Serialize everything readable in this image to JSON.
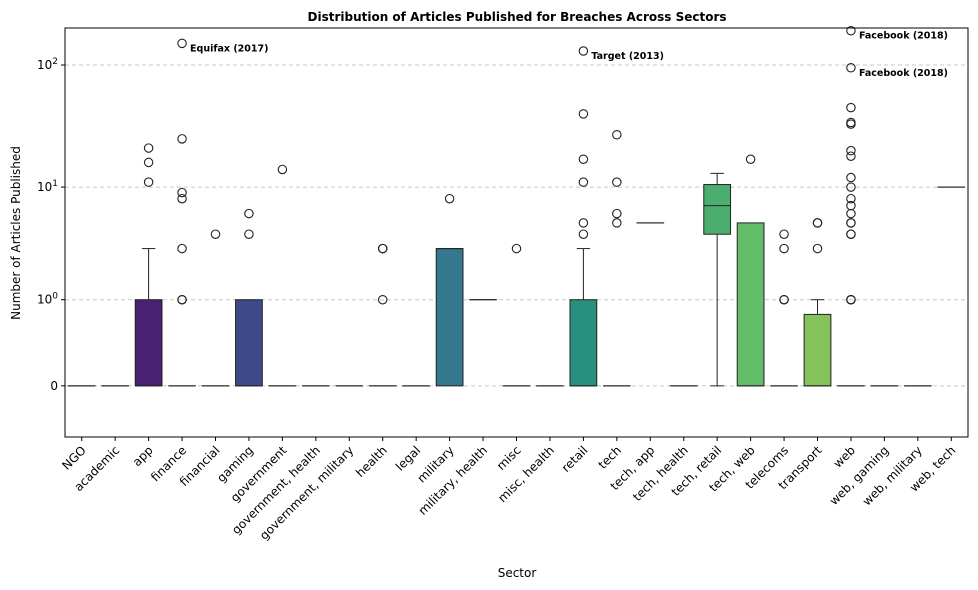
{
  "chart_data": {
    "type": "box",
    "title": "Distribution of Articles Published for Breaches Across Sectors",
    "xlabel": "Sector",
    "ylabel": "Number of Articles Published",
    "yscale": "symlog",
    "ylim": [
      -0.4,
      200
    ],
    "yticks": [
      {
        "value": 0,
        "label": "0"
      },
      {
        "value": 1,
        "label": "10^0"
      },
      {
        "value": 10,
        "label": "10^1"
      },
      {
        "value": 100,
        "label": "10^2"
      }
    ],
    "grid": "y, dashed",
    "categories": [
      "NGO",
      "academic",
      "app",
      "finance",
      "financial",
      "gaming",
      "government",
      "government, health",
      "government, military",
      "health",
      "legal",
      "military",
      "military, health",
      "misc",
      "misc, health",
      "retail",
      "tech",
      "tech, app",
      "tech, health",
      "tech, retail",
      "tech, web",
      "telecoms",
      "transport",
      "web",
      "web, gaming",
      "web, military",
      "web, tech"
    ],
    "boxes": [
      {
        "q1": 0,
        "median": 0,
        "q3": 0,
        "whisker_low": 0,
        "whisker_high": 0,
        "outliers": [],
        "color": "#440154"
      },
      {
        "q1": 0,
        "median": 0,
        "q3": 0,
        "whisker_low": 0,
        "whisker_high": 0,
        "outliers": [],
        "color": "#471365"
      },
      {
        "q1": 0,
        "median": 0,
        "q3": 1,
        "whisker_low": 0,
        "whisker_high": 3,
        "outliers": [
          11,
          16,
          21
        ],
        "color": "#482173"
      },
      {
        "q1": 0,
        "median": 0,
        "q3": 0,
        "whisker_low": 0,
        "whisker_high": 0,
        "outliers": [
          1,
          1,
          3,
          8,
          9,
          25,
          150
        ],
        "color": "#463480"
      },
      {
        "q1": 0,
        "median": 0,
        "q3": 0,
        "whisker_low": 0,
        "whisker_high": 0,
        "outliers": [
          4
        ],
        "color": "#433e85"
      },
      {
        "q1": 0,
        "median": 0,
        "q3": 1,
        "whisker_low": 0,
        "whisker_high": 1,
        "outliers": [
          4,
          6
        ],
        "color": "#3e4989"
      },
      {
        "q1": 0,
        "median": 0,
        "q3": 0,
        "whisker_low": 0,
        "whisker_high": 0,
        "outliers": [
          14
        ],
        "color": "#38588c"
      },
      {
        "q1": 0,
        "median": 0,
        "q3": 0,
        "whisker_low": 0,
        "whisker_high": 0,
        "outliers": [],
        "color": "#32648e"
      },
      {
        "q1": 0,
        "median": 0,
        "q3": 0,
        "whisker_low": 0,
        "whisker_high": 0,
        "outliers": [],
        "color": "#2d708e"
      },
      {
        "q1": 0,
        "median": 0,
        "q3": 0,
        "whisker_low": 0,
        "whisker_high": 0,
        "outliers": [
          1,
          3,
          3
        ],
        "color": "#297b8e"
      },
      {
        "q1": 0,
        "median": 0,
        "q3": 0,
        "whisker_low": 0,
        "whisker_high": 0,
        "outliers": [],
        "color": "#25858e"
      },
      {
        "q1": 0,
        "median": 3,
        "q3": 3,
        "whisker_low": 0,
        "whisker_high": 3,
        "outliers": [
          8
        ],
        "color": "#33788c"
      },
      {
        "q1": 1,
        "median": 1,
        "q3": 1,
        "whisker_low": 1,
        "whisker_high": 1,
        "outliers": [],
        "color": "#1f9a8a"
      },
      {
        "q1": 0,
        "median": 0,
        "q3": 0,
        "whisker_low": 0,
        "whisker_high": 0,
        "outliers": [
          3
        ],
        "color": "#1fa188"
      },
      {
        "q1": 0,
        "median": 0,
        "q3": 0,
        "whisker_low": 0,
        "whisker_high": 0,
        "outliers": [],
        "color": "#22a884"
      },
      {
        "q1": 0,
        "median": 0,
        "q3": 1,
        "whisker_low": 0,
        "whisker_high": 3,
        "outliers": [
          4,
          5,
          11,
          17,
          40,
          130
        ],
        "color": "#29907f"
      },
      {
        "q1": 0,
        "median": 0,
        "q3": 0,
        "whisker_low": 0,
        "whisker_high": 0,
        "outliers": [
          5,
          6,
          11,
          27
        ],
        "color": "#44bf70"
      },
      {
        "q1": 5,
        "median": 5,
        "q3": 5,
        "whisker_low": 5,
        "whisker_high": 5,
        "outliers": [],
        "color": "#52c569"
      },
      {
        "q1": 0,
        "median": 0,
        "q3": 0,
        "whisker_low": 0,
        "whisker_high": 0,
        "outliers": [],
        "color": "#5ec962"
      },
      {
        "q1": 4,
        "median": 7,
        "q3": 10.5,
        "whisker_low": 0,
        "whisker_high": 13,
        "outliers": [],
        "color": "#4cae6e"
      },
      {
        "q1": 0,
        "median": 0,
        "q3": 5,
        "whisker_low": 0,
        "whisker_high": 5,
        "outliers": [
          17
        ],
        "color": "#64bd68"
      },
      {
        "q1": 0,
        "median": 0,
        "q3": 0,
        "whisker_low": 0,
        "whisker_high": 0,
        "outliers": [
          1,
          1,
          3,
          4
        ],
        "color": "#a0da39"
      },
      {
        "q1": 0,
        "median": 0,
        "q3": 0.7,
        "whisker_low": 0,
        "whisker_high": 1,
        "outliers": [
          3,
          5,
          5
        ],
        "color": "#86c25a"
      },
      {
        "q1": 0,
        "median": 0,
        "q3": 0,
        "whisker_low": 0,
        "whisker_high": 0,
        "outliers": [
          1,
          1,
          1,
          4,
          4,
          5,
          5,
          6,
          7,
          8,
          10,
          12,
          18,
          20,
          33,
          34,
          45,
          95,
          190
        ],
        "color": "#cae11f"
      },
      {
        "q1": 0,
        "median": 0,
        "q3": 0,
        "whisker_low": 0,
        "whisker_high": 0,
        "outliers": [],
        "color": "#dfe318"
      },
      {
        "q1": 0,
        "median": 0,
        "q3": 0,
        "whisker_low": 0,
        "whisker_high": 0,
        "outliers": [],
        "color": "#ece51b"
      },
      {
        "q1": 10,
        "median": 10,
        "q3": 10,
        "whisker_low": 10,
        "whisker_high": 10,
        "outliers": [],
        "color": "#fde725"
      }
    ],
    "annotations": [
      {
        "text": "Equifax (2017)",
        "category": "finance",
        "value": 150
      },
      {
        "text": "Target (2013)",
        "category": "retail",
        "value": 130
      },
      {
        "text": "Facebook (2018)",
        "category": "web",
        "value": 190
      },
      {
        "text": "Facebook (2018)",
        "category": "web",
        "value": 95
      }
    ]
  }
}
